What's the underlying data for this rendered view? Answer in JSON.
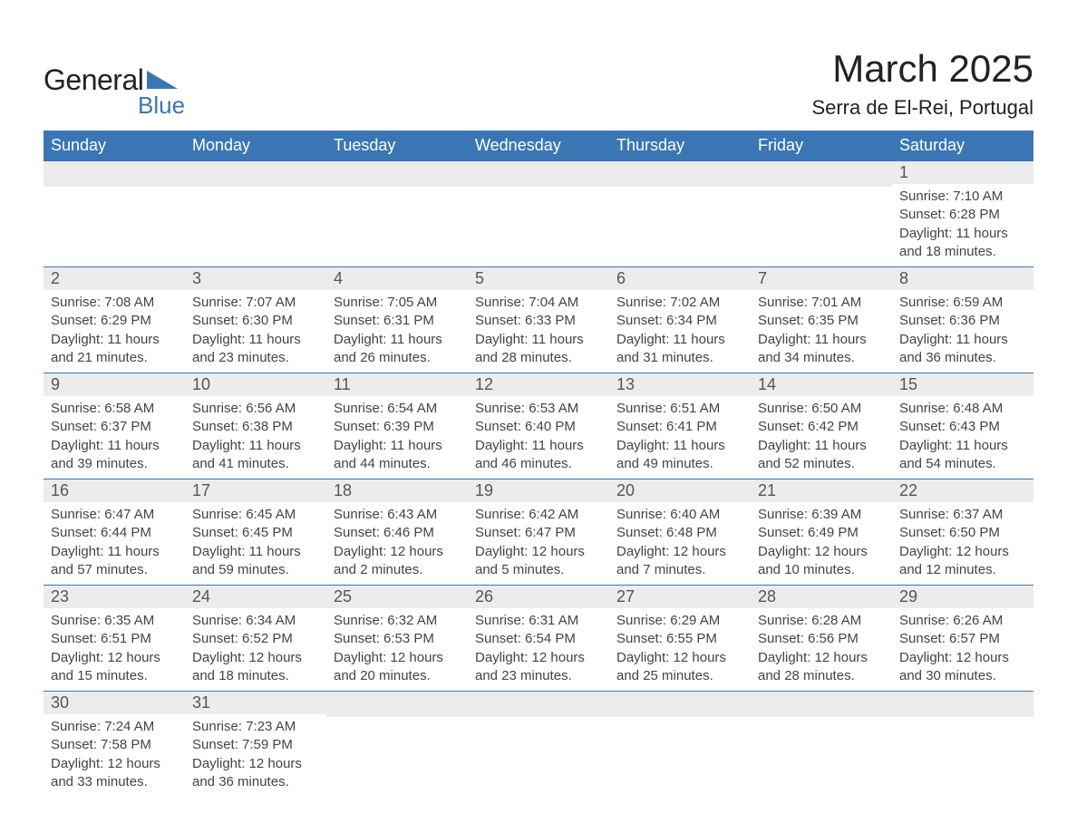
{
  "brand": {
    "text_general": "General",
    "text_blue": "Blue",
    "triangle_color": "#3a76b4"
  },
  "title": {
    "month": "March 2025",
    "location": "Serra de El-Rei, Portugal"
  },
  "colors": {
    "header_bg": "#3a76b4",
    "header_text": "#ffffff",
    "daynum_bg": "#ececec",
    "row_border": "#3a76b4",
    "page_bg": "#ffffff",
    "body_text": "#444444"
  },
  "typography": {
    "month_fontsize": 42,
    "location_fontsize": 22,
    "weekday_fontsize": 18,
    "daynum_fontsize": 18,
    "data_fontsize": 15,
    "font_family": "Arial"
  },
  "weekdays": [
    "Sunday",
    "Monday",
    "Tuesday",
    "Wednesday",
    "Thursday",
    "Friday",
    "Saturday"
  ],
  "weeks": [
    [
      null,
      null,
      null,
      null,
      null,
      null,
      {
        "n": "1",
        "sr": "7:10 AM",
        "ss": "6:28 PM",
        "dl": "11 hours and 18 minutes."
      }
    ],
    [
      {
        "n": "2",
        "sr": "7:08 AM",
        "ss": "6:29 PM",
        "dl": "11 hours and 21 minutes."
      },
      {
        "n": "3",
        "sr": "7:07 AM",
        "ss": "6:30 PM",
        "dl": "11 hours and 23 minutes."
      },
      {
        "n": "4",
        "sr": "7:05 AM",
        "ss": "6:31 PM",
        "dl": "11 hours and 26 minutes."
      },
      {
        "n": "5",
        "sr": "7:04 AM",
        "ss": "6:33 PM",
        "dl": "11 hours and 28 minutes."
      },
      {
        "n": "6",
        "sr": "7:02 AM",
        "ss": "6:34 PM",
        "dl": "11 hours and 31 minutes."
      },
      {
        "n": "7",
        "sr": "7:01 AM",
        "ss": "6:35 PM",
        "dl": "11 hours and 34 minutes."
      },
      {
        "n": "8",
        "sr": "6:59 AM",
        "ss": "6:36 PM",
        "dl": "11 hours and 36 minutes."
      }
    ],
    [
      {
        "n": "9",
        "sr": "6:58 AM",
        "ss": "6:37 PM",
        "dl": "11 hours and 39 minutes."
      },
      {
        "n": "10",
        "sr": "6:56 AM",
        "ss": "6:38 PM",
        "dl": "11 hours and 41 minutes."
      },
      {
        "n": "11",
        "sr": "6:54 AM",
        "ss": "6:39 PM",
        "dl": "11 hours and 44 minutes."
      },
      {
        "n": "12",
        "sr": "6:53 AM",
        "ss": "6:40 PM",
        "dl": "11 hours and 46 minutes."
      },
      {
        "n": "13",
        "sr": "6:51 AM",
        "ss": "6:41 PM",
        "dl": "11 hours and 49 minutes."
      },
      {
        "n": "14",
        "sr": "6:50 AM",
        "ss": "6:42 PM",
        "dl": "11 hours and 52 minutes."
      },
      {
        "n": "15",
        "sr": "6:48 AM",
        "ss": "6:43 PM",
        "dl": "11 hours and 54 minutes."
      }
    ],
    [
      {
        "n": "16",
        "sr": "6:47 AM",
        "ss": "6:44 PM",
        "dl": "11 hours and 57 minutes."
      },
      {
        "n": "17",
        "sr": "6:45 AM",
        "ss": "6:45 PM",
        "dl": "11 hours and 59 minutes."
      },
      {
        "n": "18",
        "sr": "6:43 AM",
        "ss": "6:46 PM",
        "dl": "12 hours and 2 minutes."
      },
      {
        "n": "19",
        "sr": "6:42 AM",
        "ss": "6:47 PM",
        "dl": "12 hours and 5 minutes."
      },
      {
        "n": "20",
        "sr": "6:40 AM",
        "ss": "6:48 PM",
        "dl": "12 hours and 7 minutes."
      },
      {
        "n": "21",
        "sr": "6:39 AM",
        "ss": "6:49 PM",
        "dl": "12 hours and 10 minutes."
      },
      {
        "n": "22",
        "sr": "6:37 AM",
        "ss": "6:50 PM",
        "dl": "12 hours and 12 minutes."
      }
    ],
    [
      {
        "n": "23",
        "sr": "6:35 AM",
        "ss": "6:51 PM",
        "dl": "12 hours and 15 minutes."
      },
      {
        "n": "24",
        "sr": "6:34 AM",
        "ss": "6:52 PM",
        "dl": "12 hours and 18 minutes."
      },
      {
        "n": "25",
        "sr": "6:32 AM",
        "ss": "6:53 PM",
        "dl": "12 hours and 20 minutes."
      },
      {
        "n": "26",
        "sr": "6:31 AM",
        "ss": "6:54 PM",
        "dl": "12 hours and 23 minutes."
      },
      {
        "n": "27",
        "sr": "6:29 AM",
        "ss": "6:55 PM",
        "dl": "12 hours and 25 minutes."
      },
      {
        "n": "28",
        "sr": "6:28 AM",
        "ss": "6:56 PM",
        "dl": "12 hours and 28 minutes."
      },
      {
        "n": "29",
        "sr": "6:26 AM",
        "ss": "6:57 PM",
        "dl": "12 hours and 30 minutes."
      }
    ],
    [
      {
        "n": "30",
        "sr": "7:24 AM",
        "ss": "7:58 PM",
        "dl": "12 hours and 33 minutes."
      },
      {
        "n": "31",
        "sr": "7:23 AM",
        "ss": "7:59 PM",
        "dl": "12 hours and 36 minutes."
      },
      null,
      null,
      null,
      null,
      null
    ]
  ],
  "labels": {
    "sunrise_prefix": "Sunrise: ",
    "sunset_prefix": "Sunset: ",
    "daylight_prefix": "Daylight: "
  }
}
